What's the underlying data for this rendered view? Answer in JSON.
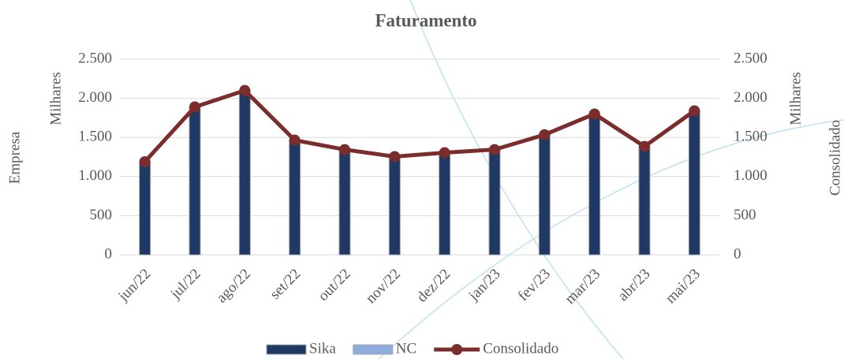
{
  "chart_data": {
    "type": "bar",
    "title": "Faturamento",
    "y_label": "Empresa",
    "y_unit": "Milhares",
    "y2_label": "Consolidado",
    "y2_unit": "Milhares",
    "categories": [
      "jun/22",
      "jul/22",
      "ago/22",
      "set/22",
      "out/22",
      "nov/22",
      "dez/22",
      "jan/23",
      "fev/23",
      "mar/23",
      "abr/23",
      "mai/23"
    ],
    "series": [
      {
        "name": "Sika",
        "color": "#1f3864",
        "values": [
          1190,
          1890,
          2100,
          1465,
          1345,
          1255,
          1305,
          1345,
          1535,
          1800,
          1385,
          1840
        ]
      },
      {
        "name": "NC",
        "color": "#8faadc",
        "values": [
          0,
          0,
          0,
          0,
          0,
          0,
          0,
          0,
          0,
          0,
          0,
          0
        ]
      },
      {
        "name": "Consolidado",
        "type": "line",
        "axis": "y2",
        "color": "#7b2c2c",
        "values": [
          1190,
          1890,
          2100,
          1465,
          1345,
          1255,
          1305,
          1345,
          1535,
          1800,
          1385,
          1840
        ]
      }
    ],
    "ylim": [
      0,
      2500
    ],
    "yticks": [
      0,
      500,
      {
        "value": 1000,
        "label": "1.000"
      },
      {
        "value": 1500,
        "label": "1.500"
      },
      {
        "value": 2000,
        "label": "2.000"
      },
      {
        "value": 2500,
        "label": "2.500"
      }
    ],
    "y2lim": [
      0,
      2500
    ],
    "y2ticks": [
      0,
      500,
      {
        "value": 1000,
        "label": "1.000"
      },
      {
        "value": 1500,
        "label": "1.500"
      },
      {
        "value": 2000,
        "label": "2.000"
      },
      {
        "value": 2500,
        "label": "2.500"
      }
    ],
    "grid": true,
    "legend": "bottom"
  }
}
